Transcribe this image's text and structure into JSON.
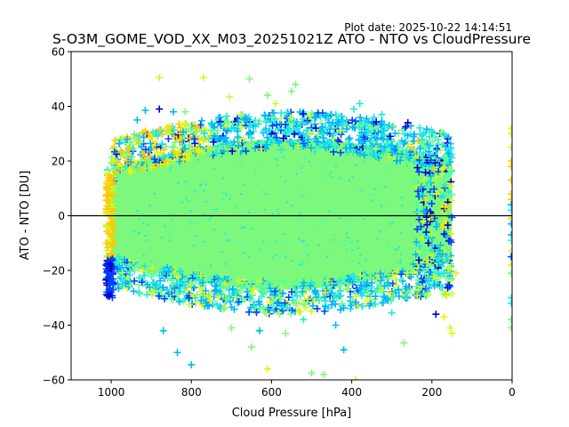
{
  "chart_data": {
    "type": "scatter",
    "title": "S-O3M_GOME_VOD_XX_M03_20251021Z ATO - NTO vs CloudPressure",
    "subtitle": "Plot date: 2025-10-22 14:14:51",
    "xlabel": "Cloud Pressure [hPa]",
    "ylabel": "ATO - NTO [DU]",
    "xlim": [
      1100,
      0
    ],
    "ylim": [
      -60,
      60
    ],
    "x_ticks": [
      1000,
      800,
      600,
      400,
      200,
      0
    ],
    "x_tick_labels": [
      "1000",
      "800",
      "600",
      "400",
      "200",
      "0"
    ],
    "y_ticks": [
      60,
      40,
      20,
      0,
      -20,
      -40,
      -60
    ],
    "y_tick_labels": [
      "60",
      "40",
      "20",
      "0",
      "−20",
      "−40",
      "−60"
    ],
    "reference_line": {
      "y": 0,
      "color": "#000000"
    },
    "marker": "+",
    "grid": false,
    "legend": "none",
    "colormap": [
      "#0000cd",
      "#0044ff",
      "#00b4ff",
      "#1fe8e0",
      "#4dfca8",
      "#7cf87c",
      "#c4ff30",
      "#f0f000",
      "#ffc800"
    ],
    "dense_cloud": {
      "description_color": "#7cf87c",
      "x_range": [
        1000,
        150
      ],
      "core_y_range": [
        -20,
        22
      ],
      "envelope_y_range": [
        -38,
        35
      ]
    },
    "outliers": [
      {
        "x": 880,
        "y": 50.5,
        "c": 6
      },
      {
        "x": 770,
        "y": 50.5,
        "c": 6
      },
      {
        "x": 655,
        "y": 50,
        "c": 5
      },
      {
        "x": 540,
        "y": 48,
        "c": 5
      },
      {
        "x": 550,
        "y": 45.5,
        "c": 5
      },
      {
        "x": 610,
        "y": 44,
        "c": 5
      },
      {
        "x": 705,
        "y": 43.5,
        "c": 6
      },
      {
        "x": 590,
        "y": 41,
        "c": 6
      },
      {
        "x": 880,
        "y": 39,
        "c": 0
      },
      {
        "x": 915,
        "y": 38.5,
        "c": 2
      },
      {
        "x": 815,
        "y": 38,
        "c": 5
      },
      {
        "x": 845,
        "y": 38,
        "c": 2
      },
      {
        "x": 380,
        "y": 41,
        "c": 3
      },
      {
        "x": 395,
        "y": 39,
        "c": 3
      },
      {
        "x": 460,
        "y": 35.5,
        "c": 3
      },
      {
        "x": 260,
        "y": 34,
        "c": 0
      },
      {
        "x": 265,
        "y": 32.5,
        "c": 0
      },
      {
        "x": 325,
        "y": 37,
        "c": 3
      },
      {
        "x": 345,
        "y": 36,
        "c": 3
      },
      {
        "x": 235,
        "y": 27.5,
        "c": 8
      },
      {
        "x": 250,
        "y": 25,
        "c": 8
      },
      {
        "x": 195,
        "y": 17,
        "c": 8
      },
      {
        "x": 160,
        "y": 3,
        "c": 8
      },
      {
        "x": 935,
        "y": 35,
        "c": 2
      },
      {
        "x": 1010,
        "y": 15.5,
        "c": 6
      },
      {
        "x": 1005,
        "y": -27,
        "c": 1
      },
      {
        "x": 1008,
        "y": -29,
        "c": 0
      },
      {
        "x": 870,
        "y": -42,
        "c": 2
      },
      {
        "x": 835,
        "y": -50,
        "c": 2
      },
      {
        "x": 800,
        "y": -54.5,
        "c": 2
      },
      {
        "x": 610,
        "y": -56,
        "c": 7
      },
      {
        "x": 420,
        "y": -49,
        "c": 2
      },
      {
        "x": 500,
        "y": -57.5,
        "c": 5
      },
      {
        "x": 470,
        "y": -58,
        "c": 5
      },
      {
        "x": 390,
        "y": -60,
        "c": 7
      },
      {
        "x": 270,
        "y": -46.5,
        "c": 5
      },
      {
        "x": 440,
        "y": -40,
        "c": 2
      },
      {
        "x": 300,
        "y": -35.5,
        "c": 3
      },
      {
        "x": 150,
        "y": -43,
        "c": 7
      },
      {
        "x": 155,
        "y": -41,
        "c": 6
      },
      {
        "x": 170,
        "y": -37,
        "c": 7
      },
      {
        "x": 140,
        "y": -21,
        "c": 7
      },
      {
        "x": 190,
        "y": -36,
        "c": 0
      },
      {
        "x": 700,
        "y": -41,
        "c": 5
      },
      {
        "x": 630,
        "y": -42,
        "c": 2
      },
      {
        "x": 565,
        "y": -43,
        "c": 5
      },
      {
        "x": 650,
        "y": -48,
        "c": 5
      },
      {
        "x": 520,
        "y": -38,
        "c": 3
      }
    ],
    "right_edge_points": [
      {
        "x": 2,
        "y": 32,
        "c": 7
      },
      {
        "x": 2,
        "y": 30,
        "c": 6
      },
      {
        "x": 2,
        "y": 25,
        "c": 6
      },
      {
        "x": 2,
        "y": 20,
        "c": 8
      },
      {
        "x": 2,
        "y": 18,
        "c": 8
      },
      {
        "x": 2,
        "y": 13,
        "c": 8
      },
      {
        "x": 2,
        "y": 8,
        "c": 8
      },
      {
        "x": 2,
        "y": 6,
        "c": 8
      },
      {
        "x": 2,
        "y": 4,
        "c": 2
      },
      {
        "x": 2,
        "y": 2,
        "c": 3
      },
      {
        "x": 2,
        "y": -1,
        "c": 8
      },
      {
        "x": 2,
        "y": -3,
        "c": 2
      },
      {
        "x": 2,
        "y": -7,
        "c": 2
      },
      {
        "x": 2,
        "y": -9,
        "c": 4
      },
      {
        "x": 2,
        "y": -13,
        "c": 6
      },
      {
        "x": 2,
        "y": -15,
        "c": 1
      },
      {
        "x": 2,
        "y": -18,
        "c": 6
      },
      {
        "x": 2,
        "y": -21,
        "c": 5
      },
      {
        "x": 2,
        "y": -30,
        "c": 3
      },
      {
        "x": 2,
        "y": -32,
        "c": 3
      },
      {
        "x": 2,
        "y": -38,
        "c": 5
      },
      {
        "x": 2,
        "y": -41,
        "c": 5
      }
    ]
  }
}
